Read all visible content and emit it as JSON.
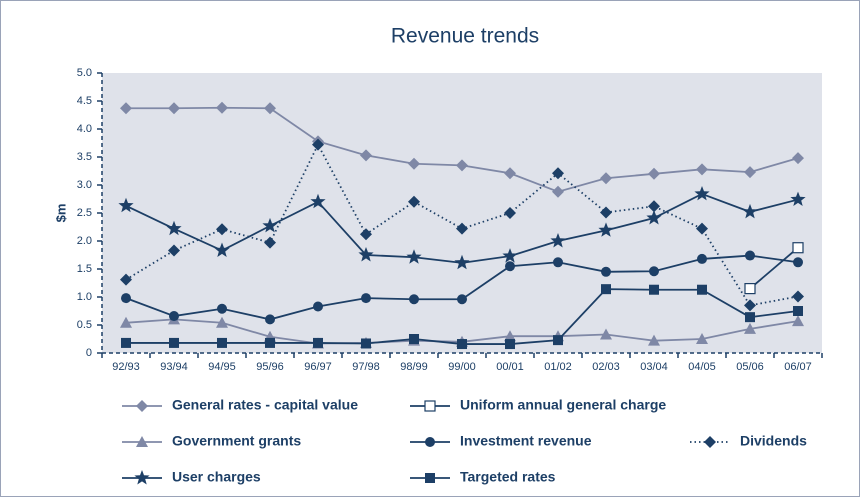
{
  "chart_data": {
    "type": "line",
    "title": "Revenue trends",
    "ylabel": "$m",
    "categories": [
      "92/93",
      "93/94",
      "94/95",
      "95/96",
      "96/97",
      "97/98",
      "98/99",
      "99/00",
      "00/01",
      "01/02",
      "02/03",
      "03/04",
      "04/05",
      "05/06",
      "06/07"
    ],
    "ylim": [
      0,
      5
    ],
    "yticks": [
      0,
      0.5,
      {
        "value": 1,
        "label": "1.0"
      },
      1.5,
      {
        "value": 2,
        "label": "2.0"
      },
      2.5,
      {
        "value": 3,
        "label": "3.0"
      },
      3.5,
      {
        "value": 4,
        "label": "4.0"
      },
      4.5,
      {
        "value": 5,
        "label": "5.0"
      }
    ],
    "series": [
      {
        "name": "General rates - capital value",
        "color": "#7f88a6",
        "marker": "diamond",
        "values": [
          4.37,
          4.37,
          4.38,
          4.37,
          3.78,
          3.53,
          3.38,
          3.35,
          3.21,
          2.88,
          3.12,
          3.2,
          3.28,
          3.23,
          3.48
        ]
      },
      {
        "name": "Uniform annual general charge",
        "color": "#1d3f66",
        "marker": "square-open",
        "values": [
          null,
          null,
          null,
          null,
          null,
          null,
          null,
          null,
          null,
          null,
          null,
          null,
          null,
          1.15,
          1.88
        ]
      },
      {
        "name": "Government grants",
        "color": "#7f88a6",
        "marker": "triangle",
        "values": [
          0.54,
          0.6,
          0.54,
          0.29,
          0.17,
          0.18,
          0.22,
          0.2,
          0.3,
          0.3,
          0.33,
          0.22,
          0.25,
          0.43,
          0.57
        ]
      },
      {
        "name": "Investment revenue",
        "color": "#1d3f66",
        "marker": "circle",
        "values": [
          0.98,
          0.66,
          0.79,
          0.6,
          0.83,
          0.98,
          0.96,
          0.96,
          1.55,
          1.62,
          1.45,
          1.46,
          1.68,
          1.74,
          1.62
        ]
      },
      {
        "name": "Dividends",
        "color": "#1d3f66",
        "marker": "diamond",
        "dash": "dotted",
        "values": [
          1.31,
          1.83,
          2.21,
          1.97,
          3.72,
          2.12,
          2.7,
          2.22,
          2.5,
          3.21,
          2.51,
          2.62,
          2.22,
          0.85,
          1.01
        ]
      },
      {
        "name": "User charges",
        "color": "#1d3f66",
        "marker": "star",
        "values": [
          2.63,
          2.22,
          1.83,
          2.27,
          2.7,
          1.75,
          1.71,
          1.61,
          1.73,
          2.0,
          2.19,
          2.41,
          2.84,
          2.52,
          2.74
        ]
      },
      {
        "name": "Targeted rates",
        "color": "#1d3f66",
        "marker": "square",
        "values": [
          0.18,
          0.18,
          0.18,
          0.18,
          0.18,
          0.17,
          0.25,
          0.16,
          0.16,
          0.23,
          1.14,
          1.13,
          1.13,
          0.64,
          0.75
        ]
      }
    ]
  }
}
